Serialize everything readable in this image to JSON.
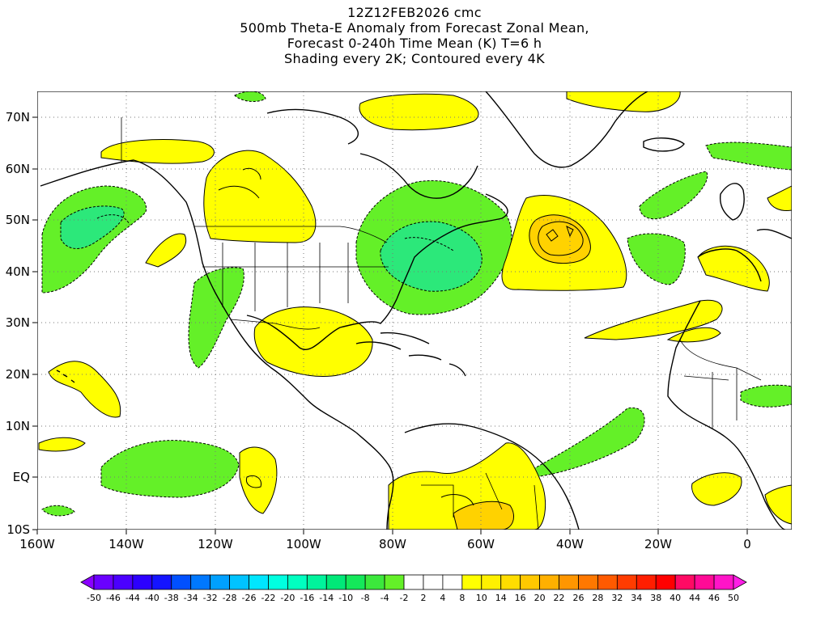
{
  "title": {
    "line1": "12Z12FEB2026 cmc",
    "line2": "500mb Theta-E Anomaly from Forecast Zonal Mean,",
    "line3": "Forecast 0-240h Time Mean (K) T=6 h",
    "line4": "Shading every 2K; Contoured every 4K"
  },
  "map": {
    "region": "North Atlantic, North America, Central America and northern South America",
    "lon_range": [
      -160,
      10
    ],
    "lat_range": [
      -10,
      75
    ],
    "lat_ticks": [
      "70N",
      "60N",
      "50N",
      "40N",
      "30N",
      "20N",
      "10N",
      "EQ",
      "10S"
    ],
    "lon_ticks": [
      "160W",
      "140W",
      "120W",
      "100W",
      "80W",
      "60W",
      "40W",
      "20W",
      "0"
    ],
    "gridlines": "dotted"
  },
  "colorbar": {
    "labels": [
      "-50",
      "-46",
      "-44",
      "-40",
      "-38",
      "-34",
      "-32",
      "-28",
      "-26",
      "-22",
      "-20",
      "-16",
      "-14",
      "-10",
      "-8",
      "-4",
      "-2",
      "2",
      "4",
      "8",
      "10",
      "14",
      "16",
      "20",
      "22",
      "26",
      "28",
      "32",
      "34",
      "38",
      "40",
      "44",
      "46",
      "50"
    ],
    "colors": [
      "#8a00ff",
      "#6a00ff",
      "#4b00ff",
      "#2c00ff",
      "#1414ff",
      "#0050ff",
      "#0078ff",
      "#00a0ff",
      "#00c3ff",
      "#00e6ff",
      "#00ffe0",
      "#00ffc0",
      "#00f39c",
      "#00e878",
      "#14e85a",
      "#3ce83c",
      "#64f028",
      "#ffffff",
      "#ffffff",
      "#ffffff",
      "#ffff00",
      "#fff000",
      "#ffdd00",
      "#ffc800",
      "#ffb000",
      "#ff9600",
      "#ff7800",
      "#ff5a00",
      "#ff3c00",
      "#ff1e00",
      "#ff0000",
      "#ff0a64",
      "#ff0a96",
      "#ff14c8",
      "#ff1ee6"
    ]
  },
  "colors": {
    "positive_anomaly": "#ffff00",
    "strong_positive": "#ffd200",
    "negative_anomaly": "#64f028",
    "strong_negative": "#2ce87a"
  }
}
